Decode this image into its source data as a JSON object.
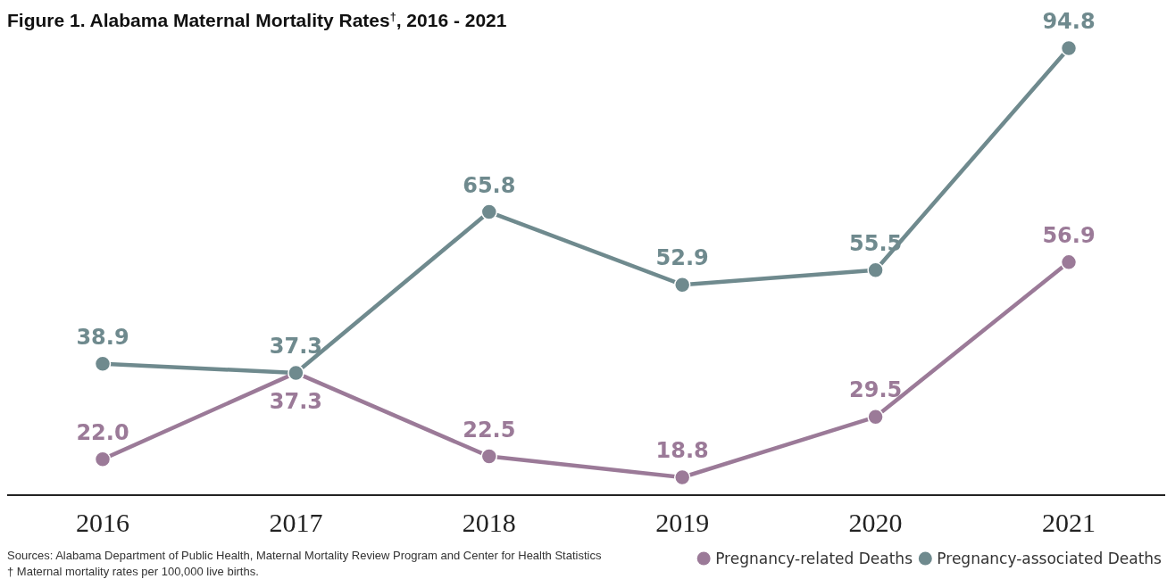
{
  "chart_data": {
    "type": "line",
    "title": "Figure 1. Alabama Maternal Mortality Rates$^{†}$, 2016 - 2021",
    "categories": [
      "2016",
      "2017",
      "2018",
      "2019",
      "2020",
      "2021"
    ],
    "series": [
      {
        "name": "Pregnancy-related Deaths",
        "color": "#9b7a98",
        "values": [
          22.0,
          37.3,
          22.5,
          18.8,
          29.5,
          56.9
        ],
        "value_labels": [
          "22.0",
          "37.3",
          "22.5",
          "18.8",
          "29.5",
          "56.9"
        ]
      },
      {
        "name": "Pregnancy-associated Deaths",
        "color": "#6f8a8e",
        "values": [
          38.9,
          37.3,
          65.8,
          52.9,
          55.5,
          94.8
        ],
        "value_labels": [
          "38.9",
          "37.3",
          "65.8",
          "52.9",
          "55.5",
          "94.8"
        ]
      }
    ],
    "marker": "circle",
    "line_style": "solid",
    "legend": "bottom right",
    "annotations": [
      "Sources: Alabama Department of Public Health, Maternal Mortality Review Program and Center for Health Statistics",
      "† Maternal mortality rates per 100,000 live births."
    ]
  }
}
